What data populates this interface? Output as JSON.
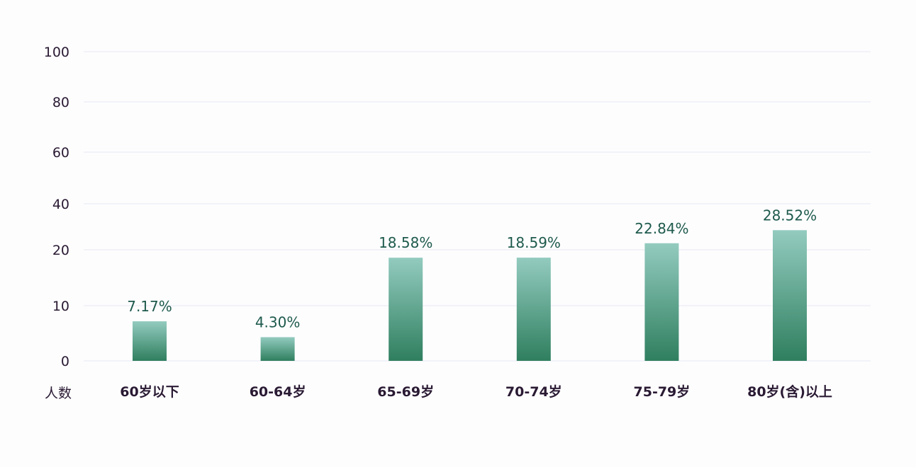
{
  "chart_data": {
    "type": "bar",
    "title": "",
    "xlabel": "",
    "ylabel": "",
    "unit_label": "人数",
    "categories": [
      "60岁以下",
      "60-64岁",
      "65-69岁",
      "70-74岁",
      "75-79岁",
      "80岁(含)以上"
    ],
    "values": [
      7.17,
      4.3,
      18.58,
      18.59,
      22.84,
      28.52
    ],
    "data_labels": [
      "7.17%",
      "4.30%",
      "18.58%",
      "18.59%",
      "22.84%",
      "28.52%"
    ],
    "y_ticks": [
      0,
      10,
      20,
      40,
      60,
      80,
      100
    ],
    "y_tick_labels": [
      "0",
      "10",
      "20",
      "40",
      "60",
      "80",
      "100"
    ],
    "ylim": [
      0,
      100
    ],
    "grid": true,
    "legend": "none",
    "colors": {
      "bar_top": "#93cbbf",
      "bar_bottom": "#2f7f5f",
      "data_label": "#1e5a4c",
      "text": "#2a1a33",
      "grid": "#eef0f5"
    }
  }
}
